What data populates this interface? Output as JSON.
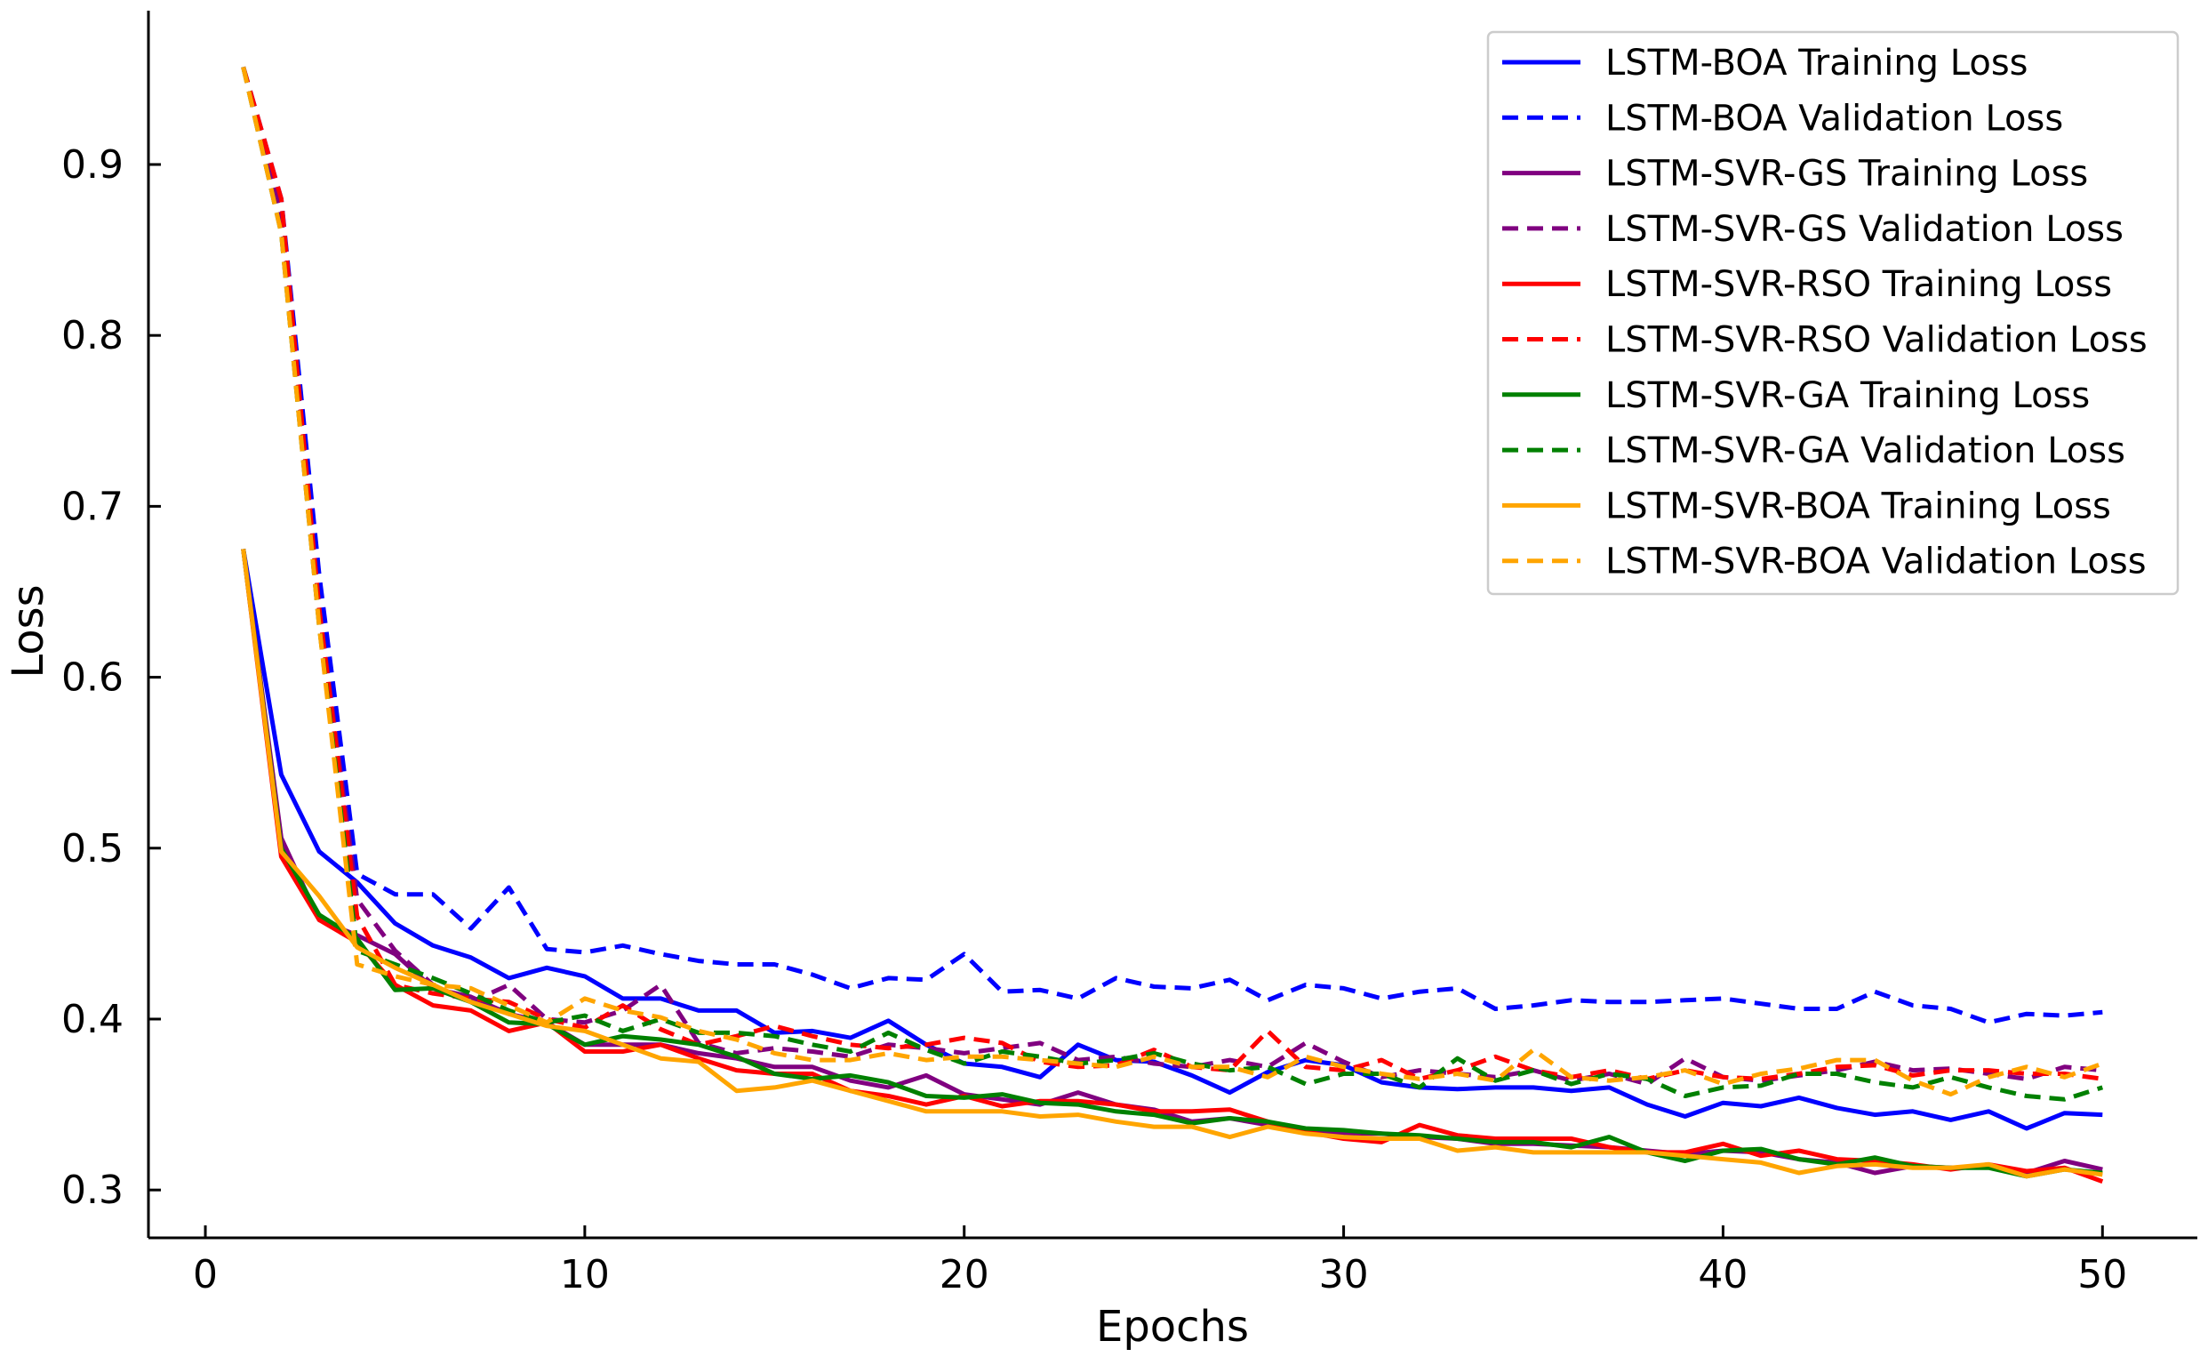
{
  "chart_data": {
    "type": "line",
    "title": "",
    "xlabel": "Epochs",
    "ylabel": "Loss",
    "xlim": [
      -1.5,
      52.5
    ],
    "ylim": [
      0.272,
      0.99
    ],
    "xticks": [
      0,
      10,
      20,
      30,
      40,
      50
    ],
    "yticks": [
      0.3,
      0.4,
      0.5,
      0.6,
      0.7,
      0.8,
      0.9
    ],
    "xtick_labels": [
      "0",
      "10",
      "20",
      "30",
      "40",
      "50"
    ],
    "ytick_labels": [
      "0.3",
      "0.4",
      "0.5",
      "0.6",
      "0.7",
      "0.8",
      "0.9"
    ],
    "grid": false,
    "legend_position": "top-right",
    "x": [
      1,
      2,
      3,
      4,
      5,
      6,
      7,
      8,
      9,
      10,
      11,
      12,
      13,
      14,
      15,
      16,
      17,
      18,
      19,
      20,
      21,
      22,
      23,
      24,
      25,
      26,
      27,
      28,
      29,
      30,
      31,
      32,
      33,
      34,
      35,
      36,
      37,
      38,
      39,
      40,
      41,
      42,
      43,
      44,
      45,
      46,
      47,
      48,
      49,
      50
    ],
    "series": [
      {
        "name": "LSTM-BOA Training Loss",
        "color": "#0000ff",
        "style": "solid",
        "values": [
          0.675,
          0.543,
          0.498,
          0.48,
          0.456,
          0.443,
          0.436,
          0.424,
          0.43,
          0.425,
          0.412,
          0.412,
          0.405,
          0.405,
          0.392,
          0.393,
          0.389,
          0.399,
          0.385,
          0.374,
          0.372,
          0.366,
          0.385,
          0.376,
          0.375,
          0.367,
          0.357,
          0.369,
          0.376,
          0.373,
          0.363,
          0.36,
          0.359,
          0.36,
          0.36,
          0.358,
          0.36,
          0.35,
          0.343,
          0.351,
          0.349,
          0.354,
          0.348,
          0.344,
          0.346,
          0.341,
          0.346,
          0.336,
          0.345,
          0.344
        ]
      },
      {
        "name": "LSTM-BOA Validation Loss",
        "color": "#0000ff",
        "style": "dashed",
        "values": [
          0.957,
          0.88,
          0.66,
          0.485,
          0.473,
          0.473,
          0.453,
          0.477,
          0.441,
          0.439,
          0.443,
          0.438,
          0.434,
          0.432,
          0.432,
          0.426,
          0.418,
          0.424,
          0.423,
          0.438,
          0.416,
          0.417,
          0.412,
          0.424,
          0.419,
          0.418,
          0.423,
          0.411,
          0.42,
          0.418,
          0.412,
          0.416,
          0.418,
          0.406,
          0.408,
          0.411,
          0.41,
          0.41,
          0.411,
          0.412,
          0.409,
          0.406,
          0.406,
          0.416,
          0.408,
          0.406,
          0.398,
          0.403,
          0.402,
          0.404
        ]
      },
      {
        "name": "LSTM-SVR-GS Training Loss",
        "color": "#800080",
        "style": "solid",
        "values": [
          0.675,
          0.506,
          0.458,
          0.449,
          0.438,
          0.418,
          0.413,
          0.403,
          0.398,
          0.385,
          0.385,
          0.385,
          0.38,
          0.377,
          0.372,
          0.372,
          0.364,
          0.36,
          0.367,
          0.356,
          0.353,
          0.35,
          0.357,
          0.35,
          0.347,
          0.34,
          0.342,
          0.338,
          0.335,
          0.333,
          0.333,
          0.331,
          0.33,
          0.327,
          0.327,
          0.326,
          0.325,
          0.323,
          0.321,
          0.323,
          0.322,
          0.318,
          0.316,
          0.31,
          0.314,
          0.313,
          0.314,
          0.31,
          0.317,
          0.312
        ]
      },
      {
        "name": "LSTM-SVR-GS Validation Loss",
        "color": "#800080",
        "style": "dashed",
        "values": [
          0.957,
          0.87,
          0.64,
          0.47,
          0.44,
          0.42,
          0.41,
          0.42,
          0.4,
          0.398,
          0.405,
          0.42,
          0.386,
          0.38,
          0.383,
          0.381,
          0.378,
          0.385,
          0.383,
          0.38,
          0.383,
          0.386,
          0.376,
          0.378,
          0.374,
          0.372,
          0.376,
          0.372,
          0.386,
          0.375,
          0.366,
          0.37,
          0.368,
          0.366,
          0.37,
          0.364,
          0.368,
          0.362,
          0.377,
          0.366,
          0.364,
          0.367,
          0.37,
          0.375,
          0.37,
          0.371,
          0.368,
          0.365,
          0.372,
          0.37
        ]
      },
      {
        "name": "LSTM-SVR-RSO Training Loss",
        "color": "#ff0000",
        "style": "solid",
        "values": [
          0.675,
          0.495,
          0.458,
          0.445,
          0.42,
          0.408,
          0.405,
          0.393,
          0.398,
          0.381,
          0.381,
          0.385,
          0.377,
          0.37,
          0.368,
          0.368,
          0.358,
          0.355,
          0.35,
          0.355,
          0.349,
          0.352,
          0.352,
          0.35,
          0.346,
          0.346,
          0.347,
          0.34,
          0.334,
          0.33,
          0.328,
          0.338,
          0.332,
          0.33,
          0.33,
          0.33,
          0.325,
          0.322,
          0.322,
          0.327,
          0.32,
          0.323,
          0.318,
          0.317,
          0.315,
          0.312,
          0.315,
          0.311,
          0.313,
          0.305
        ]
      },
      {
        "name": "LSTM-SVR-RSO Validation Loss",
        "color": "#ff0000",
        "style": "dashed",
        "values": [
          0.957,
          0.88,
          0.64,
          0.46,
          0.42,
          0.415,
          0.412,
          0.41,
          0.4,
          0.395,
          0.408,
          0.394,
          0.385,
          0.39,
          0.396,
          0.39,
          0.385,
          0.383,
          0.385,
          0.389,
          0.386,
          0.375,
          0.372,
          0.373,
          0.382,
          0.372,
          0.37,
          0.393,
          0.372,
          0.37,
          0.376,
          0.365,
          0.37,
          0.378,
          0.37,
          0.366,
          0.37,
          0.365,
          0.37,
          0.366,
          0.365,
          0.368,
          0.372,
          0.373,
          0.367,
          0.37,
          0.37,
          0.368,
          0.368,
          0.365
        ]
      },
      {
        "name": "LSTM-SVR-GA Training Loss",
        "color": "#008000",
        "style": "solid",
        "values": [
          0.675,
          0.5,
          0.461,
          0.447,
          0.417,
          0.418,
          0.41,
          0.398,
          0.397,
          0.385,
          0.39,
          0.388,
          0.385,
          0.378,
          0.368,
          0.365,
          0.367,
          0.363,
          0.355,
          0.354,
          0.356,
          0.351,
          0.35,
          0.346,
          0.344,
          0.339,
          0.342,
          0.34,
          0.336,
          0.335,
          0.333,
          0.332,
          0.33,
          0.328,
          0.328,
          0.325,
          0.331,
          0.322,
          0.317,
          0.323,
          0.324,
          0.318,
          0.315,
          0.319,
          0.314,
          0.313,
          0.313,
          0.308,
          0.312,
          0.31
        ]
      },
      {
        "name": "LSTM-SVR-GA Validation Loss",
        "color": "#008000",
        "style": "dashed",
        "values": [
          0.957,
          0.86,
          0.63,
          0.44,
          0.432,
          0.424,
          0.415,
          0.405,
          0.398,
          0.402,
          0.393,
          0.4,
          0.392,
          0.392,
          0.39,
          0.385,
          0.381,
          0.392,
          0.382,
          0.374,
          0.381,
          0.378,
          0.374,
          0.376,
          0.38,
          0.374,
          0.37,
          0.372,
          0.362,
          0.368,
          0.368,
          0.36,
          0.377,
          0.364,
          0.37,
          0.362,
          0.368,
          0.365,
          0.355,
          0.36,
          0.361,
          0.368,
          0.368,
          0.363,
          0.36,
          0.366,
          0.36,
          0.355,
          0.353,
          0.36
        ]
      },
      {
        "name": "LSTM-SVR-BOA Training Loss",
        "color": "#ffa500",
        "style": "solid",
        "values": [
          0.675,
          0.498,
          0.472,
          0.442,
          0.43,
          0.42,
          0.41,
          0.403,
          0.396,
          0.393,
          0.385,
          0.377,
          0.375,
          0.358,
          0.36,
          0.364,
          0.358,
          0.352,
          0.346,
          0.346,
          0.346,
          0.343,
          0.344,
          0.34,
          0.337,
          0.337,
          0.331,
          0.337,
          0.333,
          0.331,
          0.33,
          0.33,
          0.323,
          0.325,
          0.322,
          0.322,
          0.322,
          0.322,
          0.32,
          0.318,
          0.316,
          0.31,
          0.314,
          0.315,
          0.313,
          0.313,
          0.315,
          0.308,
          0.312,
          0.309
        ]
      },
      {
        "name": "LSTM-SVR-BOA Validation Loss",
        "color": "#ffa500",
        "style": "dashed",
        "values": [
          0.957,
          0.86,
          0.63,
          0.432,
          0.425,
          0.42,
          0.418,
          0.408,
          0.398,
          0.412,
          0.405,
          0.401,
          0.393,
          0.388,
          0.38,
          0.376,
          0.376,
          0.38,
          0.376,
          0.378,
          0.378,
          0.376,
          0.374,
          0.372,
          0.378,
          0.372,
          0.372,
          0.366,
          0.378,
          0.372,
          0.368,
          0.365,
          0.368,
          0.364,
          0.382,
          0.366,
          0.364,
          0.366,
          0.37,
          0.362,
          0.368,
          0.371,
          0.376,
          0.376,
          0.364,
          0.356,
          0.366,
          0.372,
          0.366,
          0.374
        ]
      }
    ]
  }
}
